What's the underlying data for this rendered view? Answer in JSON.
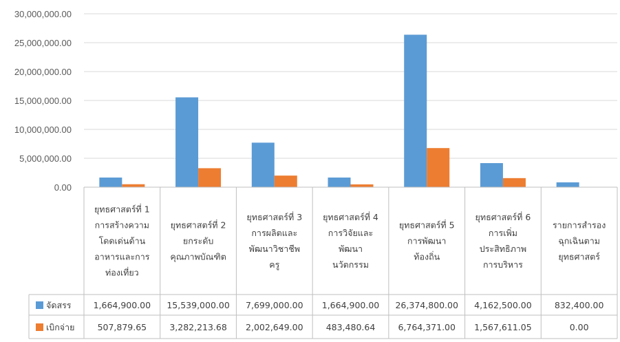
{
  "chart_data": {
    "type": "bar",
    "categories": [
      [
        "ยุทธศาสตร์ที่ 1",
        "การสร้างความ",
        "โดดเด่นด้าน",
        "อาหารและการ",
        "ท่องเที่ยว"
      ],
      [
        "ยุทธศาสตร์ที่ 2",
        "ยกระดับ",
        "คุณภาพบัณฑิต"
      ],
      [
        "ยุทธศาสตร์ที่ 3",
        "การผลิตและ",
        "พัฒนาวิชาชีพ",
        "ครู"
      ],
      [
        "ยุทธศาสตร์ที่ 4",
        "การวิจัยและ",
        "พัฒนา",
        "นวัตกรรม"
      ],
      [
        "ยุทธศาสตร์ที่ 5",
        "การพัฒนา",
        "ท้องถิ่น"
      ],
      [
        "ยุทธศาสตร์ที่ 6",
        "การเพิ่ม",
        "ประสิทธิภาพ",
        "การบริหาร"
      ],
      [
        "รายการสำรอง",
        "ฉุกเฉินตาม",
        "ยุทธศาสตร์"
      ]
    ],
    "series": [
      {
        "name": "จัดสรร",
        "color": "#5B9BD5",
        "values": [
          1664900.0,
          15539000.0,
          7699000.0,
          1664900.0,
          26374800.0,
          4162500.0,
          832400.0
        ],
        "labels": [
          "1,664,900.00",
          "15,539,000.00",
          "7,699,000.00",
          "1,664,900.00",
          "26,374,800.00",
          "4,162,500.00",
          "832,400.00"
        ]
      },
      {
        "name": "เบิกจ่าย",
        "color": "#ED7D31",
        "values": [
          507879.65,
          3282213.68,
          2002649.0,
          483480.64,
          6764371.0,
          1567611.05,
          0.0
        ],
        "labels": [
          "507,879.65",
          "3,282,213.68",
          "2,002,649.00",
          "483,480.64",
          "6,764,371.00",
          "1,567,611.05",
          "0.00"
        ]
      }
    ],
    "ylim": [
      0,
      30000000
    ],
    "yticks": [
      0,
      5000000,
      10000000,
      15000000,
      20000000,
      25000000,
      30000000
    ],
    "ytick_labels": [
      "0.00",
      "5,000,000.00",
      "10,000,000.00",
      "15,000,000.00",
      "20,000,000.00",
      "25,000,000.00",
      "30,000,000.00"
    ],
    "grid": true,
    "data_table": true,
    "legend": "in-table"
  }
}
